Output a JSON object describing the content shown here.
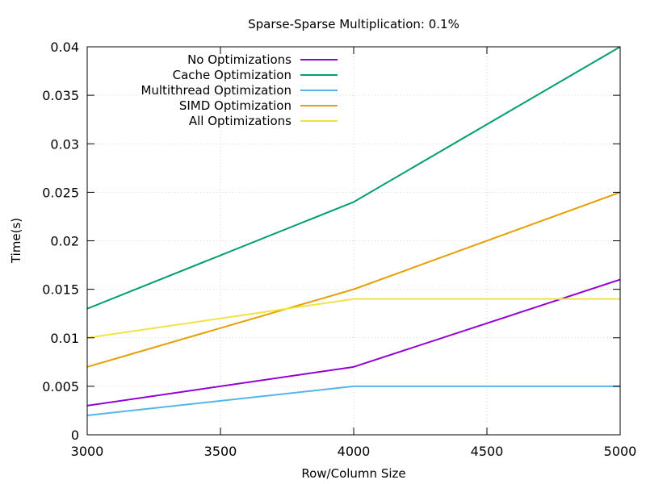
{
  "chart_data": {
    "type": "line",
    "title": "Sparse-Sparse Multiplication: 0.1%",
    "xlabel": "Row/Column Size",
    "ylabel": "Time(s)",
    "x": [
      3000,
      4000,
      5000
    ],
    "xlim": [
      3000,
      5000
    ],
    "ylim": [
      0,
      0.04
    ],
    "xticks": [
      3000,
      3500,
      4000,
      4500,
      5000
    ],
    "yticks": [
      0,
      0.005,
      0.01,
      0.015,
      0.02,
      0.025,
      0.03,
      0.035,
      0.04
    ],
    "xtick_labels": [
      "3000",
      "3500",
      "4000",
      "4500",
      "5000"
    ],
    "ytick_labels": [
      "0",
      "0.005",
      "0.01",
      "0.015",
      "0.02",
      "0.025",
      "0.03",
      "0.035",
      "0.04"
    ],
    "grid": true,
    "legend_position": "top-left",
    "series": [
      {
        "name": "No Optimizations",
        "color": "#9400d3",
        "values": [
          0.003,
          0.007,
          0.016
        ]
      },
      {
        "name": "Cache Optimization",
        "color": "#009e73",
        "values": [
          0.013,
          0.024,
          0.04
        ]
      },
      {
        "name": "Multithread Optimization",
        "color": "#56b4e9",
        "values": [
          0.002,
          0.005,
          0.005
        ]
      },
      {
        "name": "SIMD Optimization",
        "color": "#e69f00",
        "values": [
          0.007,
          0.015,
          0.025
        ]
      },
      {
        "name": "All Optimizations",
        "color": "#f0e442",
        "values": [
          0.01,
          0.014,
          0.014
        ]
      }
    ]
  }
}
